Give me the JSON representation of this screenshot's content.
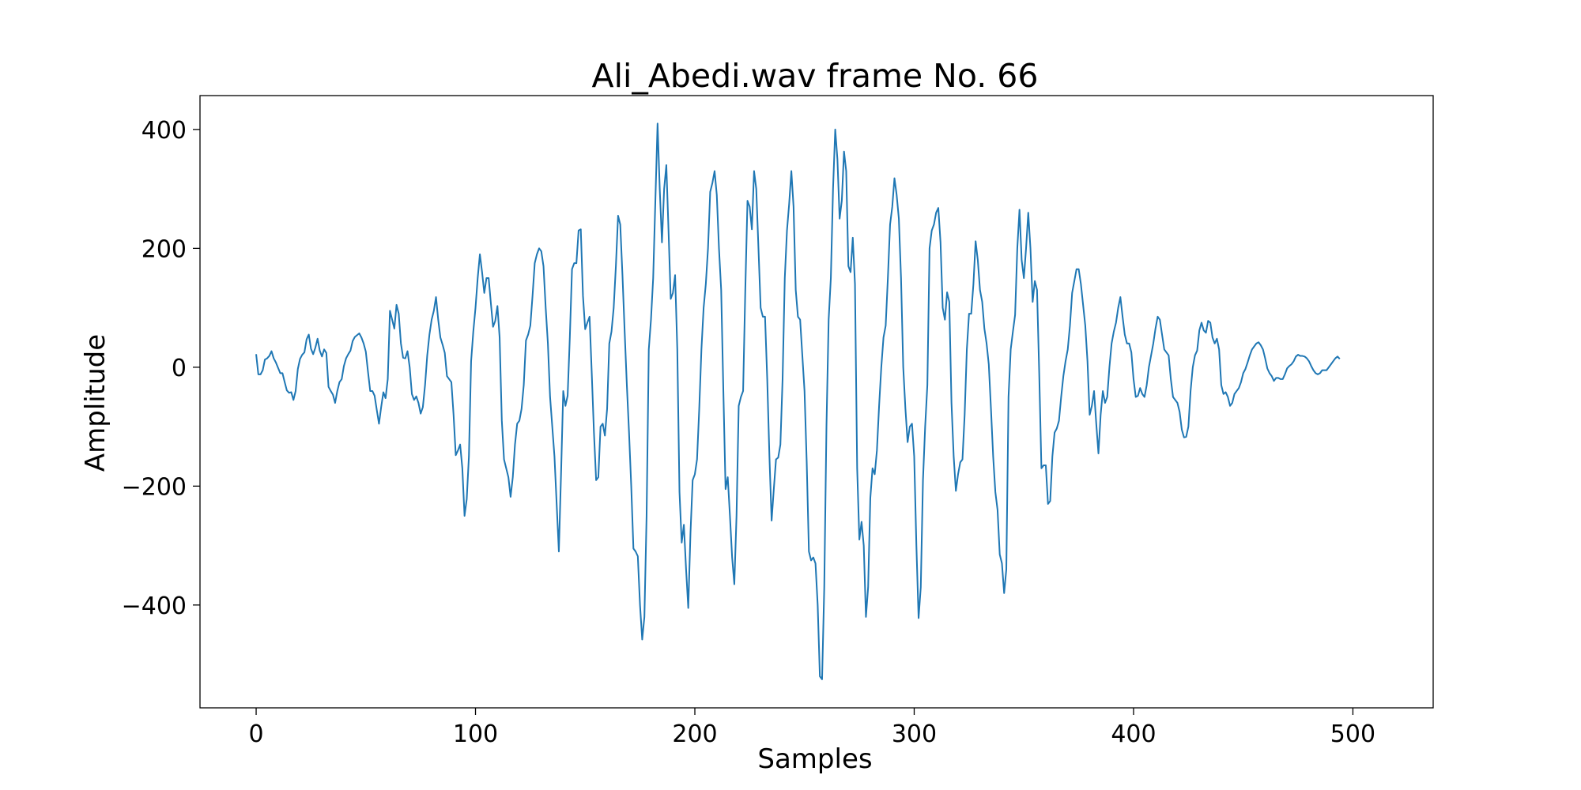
{
  "chart_data": {
    "type": "line",
    "title": "Ali_Abedi.wav frame No. 66",
    "xlabel": "Samples",
    "ylabel": "Amplitude",
    "xlim": [
      -25.6,
      536.6
    ],
    "ylim": [
      -573,
      457
    ],
    "xticks": [
      0,
      100,
      200,
      300,
      400,
      500
    ],
    "xtick_labels": [
      "0",
      "100",
      "200",
      "300",
      "400",
      "500"
    ],
    "yticks": [
      -400,
      -200,
      0,
      200,
      400
    ],
    "ytick_labels": [
      "−400",
      "−200",
      "0",
      "200",
      "400"
    ],
    "grid": false,
    "legend": "none",
    "series": [
      {
        "color": "#1f77b4",
        "x_start": 0,
        "x_step": 1,
        "values": [
          22,
          -12,
          -12,
          -5,
          13,
          15,
          19,
          27,
          15,
          8,
          -1,
          -10,
          -10,
          -25,
          -39,
          -43,
          -42,
          -55,
          -40,
          -3,
          14,
          21,
          25,
          47,
          55,
          31,
          22,
          33,
          48,
          28,
          18,
          30,
          24,
          -33,
          -40,
          -46,
          -60,
          -40,
          -25,
          -20,
          2,
          15,
          22,
          28,
          44,
          51,
          54,
          57,
          50,
          40,
          26,
          -8,
          -40,
          -40,
          -48,
          -72,
          -95,
          -67,
          -42,
          -52,
          -20,
          95,
          80,
          65,
          105,
          90,
          40,
          16,
          15,
          27,
          0,
          -45,
          -55,
          -49,
          -60,
          -78,
          -67,
          -30,
          20,
          55,
          80,
          95,
          118,
          80,
          50,
          38,
          24,
          -15,
          -20,
          -25,
          -80,
          -148,
          -140,
          -130,
          -170,
          -250,
          -222,
          -150,
          10,
          60,
          100,
          150,
          190,
          160,
          125,
          150,
          150,
          108,
          68,
          78,
          103,
          50,
          -90,
          -155,
          -170,
          -185,
          -218,
          -185,
          -130,
          -95,
          -90,
          -70,
          -30,
          45,
          55,
          70,
          120,
          175,
          190,
          200,
          195,
          170,
          100,
          40,
          -50,
          -100,
          -150,
          -230,
          -310,
          -180,
          -40,
          -65,
          -48,
          50,
          165,
          175,
          175,
          230,
          232,
          120,
          64,
          75,
          85,
          -10,
          -110,
          -190,
          -185,
          -100,
          -95,
          -115,
          -70,
          40,
          60,
          100,
          170,
          255,
          240,
          155,
          60,
          -30,
          -110,
          -200,
          -305,
          -310,
          -318,
          -400,
          -458,
          -420,
          -250,
          30,
          80,
          150,
          280,
          410,
          300,
          210,
          300,
          340,
          230,
          115,
          125,
          155,
          30,
          -210,
          -295,
          -265,
          -340,
          -405,
          -280,
          -190,
          -180,
          -155,
          -70,
          30,
          100,
          140,
          200,
          295,
          310,
          330,
          290,
          200,
          130,
          -40,
          -205,
          -185,
          -250,
          -320,
          -365,
          -250,
          -65,
          -50,
          -40,
          130,
          280,
          270,
          232,
          330,
          300,
          200,
          100,
          85,
          85,
          -20,
          -150,
          -258,
          -205,
          -155,
          -152,
          -130,
          -20,
          150,
          230,
          275,
          330,
          270,
          130,
          85,
          80,
          20,
          -40,
          -160,
          -310,
          -325,
          -320,
          -330,
          -400,
          -520,
          -525,
          -370,
          -100,
          80,
          150,
          300,
          400,
          350,
          250,
          280,
          363,
          330,
          170,
          160,
          218,
          140,
          -170,
          -290,
          -260,
          -300,
          -420,
          -370,
          -220,
          -170,
          -180,
          -140,
          -65,
          0,
          50,
          70,
          150,
          240,
          270,
          318,
          290,
          250,
          150,
          0,
          -70,
          -126,
          -100,
          -95,
          -150,
          -300,
          -422,
          -370,
          -190,
          -100,
          -30,
          200,
          230,
          240,
          260,
          268,
          210,
          100,
          80,
          126,
          110,
          -60,
          -150,
          -208,
          -180,
          -160,
          -155,
          -80,
          30,
          90,
          90,
          140,
          212,
          180,
          130,
          110,
          65,
          40,
          5,
          -70,
          -150,
          -210,
          -240,
          -315,
          -330,
          -380,
          -340,
          -50,
          30,
          60,
          88,
          200,
          265,
          180,
          150,
          200,
          260,
          200,
          110,
          145,
          130,
          -10,
          -170,
          -165,
          -165,
          -230,
          -225,
          -150,
          -110,
          -103,
          -90,
          -50,
          -15,
          10,
          30,
          70,
          125,
          145,
          165,
          165,
          140,
          105,
          70,
          10,
          -80,
          -65,
          -40,
          -95,
          -145,
          -80,
          -40,
          -60,
          -50,
          0,
          40,
          60,
          75,
          100,
          118,
          85,
          55,
          40,
          40,
          25,
          -20,
          -50,
          -48,
          -35,
          -45,
          -50,
          -30,
          0,
          20,
          40,
          65,
          85,
          80,
          55,
          30,
          25,
          20,
          -20,
          -50,
          -55,
          -60,
          -75,
          -105,
          -118,
          -117,
          -100,
          -40,
          0,
          20,
          28,
          62,
          75,
          62,
          58,
          78,
          75,
          50,
          40,
          48,
          30,
          -30,
          -45,
          -42,
          -50,
          -65,
          -60,
          -45,
          -40,
          -35,
          -25,
          -10,
          -3,
          8,
          20,
          30,
          35,
          40,
          42,
          37,
          30,
          15,
          -2,
          -10,
          -15,
          -23,
          -18,
          -18,
          -20,
          -20,
          -12,
          -2,
          2,
          5,
          10,
          18,
          21,
          19,
          19,
          18,
          15,
          10,
          2,
          -5,
          -10,
          -12,
          -10,
          -5,
          -5,
          -5,
          0,
          5,
          10,
          15,
          18,
          14
        ]
      }
    ]
  }
}
